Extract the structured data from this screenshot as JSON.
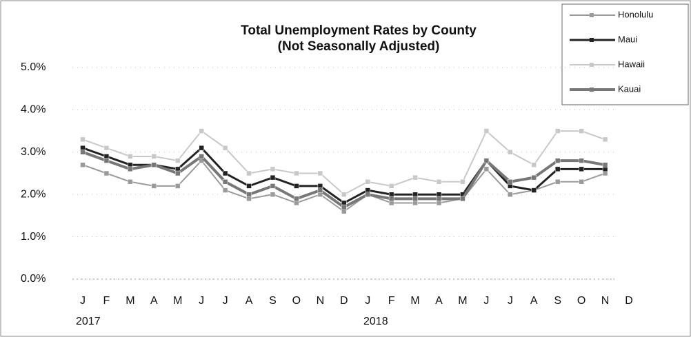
{
  "chart_data": {
    "type": "line",
    "title": "Total Unemployment  Rates by County",
    "subtitle": "(Not Seasonally Adjusted)",
    "categories": [
      "J",
      "F",
      "M",
      "A",
      "M",
      "J",
      "J",
      "A",
      "S",
      "O",
      "N",
      "D",
      "J",
      "F",
      "M",
      "A",
      "M",
      "J",
      "J",
      "A",
      "S",
      "O",
      "N",
      "D"
    ],
    "annotations": [
      "2017",
      "2018"
    ],
    "ylim": [
      0,
      5
    ],
    "yticks": [
      {
        "value": 0,
        "label": "0.0%"
      },
      {
        "value": 1,
        "label": "1.0%"
      },
      {
        "value": 2,
        "label": "2.0%"
      },
      {
        "value": 3,
        "label": "3.0%"
      },
      {
        "value": 4,
        "label": "4.0%"
      },
      {
        "value": 5,
        "label": "5.0%"
      }
    ],
    "grid": true,
    "legend": "top-right",
    "series": [
      {
        "name": "Honolulu",
        "color": "#9a9a9a",
        "values": [
          2.7,
          2.5,
          2.3,
          2.2,
          2.2,
          2.8,
          2.1,
          1.9,
          2.0,
          1.8,
          2.0,
          1.6,
          2.0,
          1.8,
          1.8,
          1.8,
          1.9,
          2.6,
          2.0,
          2.1,
          2.3,
          2.3,
          2.5,
          null
        ]
      },
      {
        "name": "Maui",
        "color": "#222222",
        "values": [
          3.1,
          2.9,
          2.7,
          2.7,
          2.6,
          3.1,
          2.5,
          2.2,
          2.4,
          2.2,
          2.2,
          1.8,
          2.1,
          2.0,
          2.0,
          2.0,
          2.0,
          2.8,
          2.2,
          2.1,
          2.6,
          2.6,
          2.6,
          null
        ]
      },
      {
        "name": "Hawaii",
        "color": "#c8c8c8",
        "values": [
          3.3,
          3.1,
          2.9,
          2.9,
          2.8,
          3.5,
          3.1,
          2.5,
          2.6,
          2.5,
          2.5,
          2.0,
          2.3,
          2.2,
          2.4,
          2.3,
          2.3,
          3.5,
          3.0,
          2.7,
          3.5,
          3.5,
          3.3,
          null
        ]
      },
      {
        "name": "Kauai",
        "color": "#777777",
        "values": [
          3.0,
          2.8,
          2.6,
          2.7,
          2.5,
          2.9,
          2.3,
          2.0,
          2.2,
          1.9,
          2.1,
          1.7,
          2.0,
          1.9,
          1.9,
          1.9,
          1.9,
          2.8,
          2.3,
          2.4,
          2.8,
          2.8,
          2.7,
          null
        ]
      }
    ]
  }
}
